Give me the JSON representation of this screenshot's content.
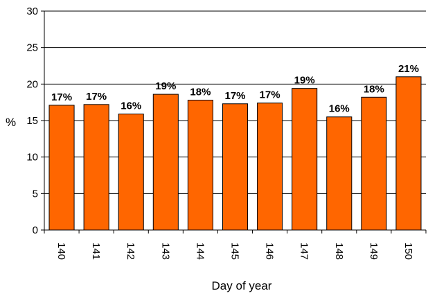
{
  "chart_data": {
    "type": "bar",
    "title": "",
    "xlabel": "Day of year",
    "ylabel": "%",
    "ylim": [
      0,
      30
    ],
    "yticks": [
      0,
      5,
      10,
      15,
      20,
      25,
      30
    ],
    "grid": true,
    "categories": [
      "140",
      "141",
      "142",
      "143",
      "144",
      "145",
      "146",
      "147",
      "148",
      "149",
      "150"
    ],
    "values": [
      17.1,
      17.2,
      15.9,
      18.6,
      17.8,
      17.3,
      17.4,
      19.4,
      15.5,
      18.2,
      21.0
    ],
    "data_labels": [
      "17%",
      "17%",
      "16%",
      "19%",
      "18%",
      "17%",
      "17%",
      "19%",
      "16%",
      "18%",
      "21%"
    ],
    "bar_color": "#ff6600",
    "bar_edge_color": "#000000"
  }
}
